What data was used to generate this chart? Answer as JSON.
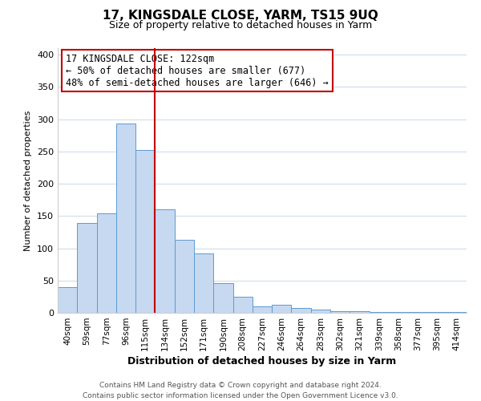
{
  "title": "17, KINGSDALE CLOSE, YARM, TS15 9UQ",
  "subtitle": "Size of property relative to detached houses in Yarm",
  "xlabel": "Distribution of detached houses by size in Yarm",
  "ylabel": "Number of detached properties",
  "bar_labels": [
    "40sqm",
    "59sqm",
    "77sqm",
    "96sqm",
    "115sqm",
    "134sqm",
    "152sqm",
    "171sqm",
    "190sqm",
    "208sqm",
    "227sqm",
    "246sqm",
    "264sqm",
    "283sqm",
    "302sqm",
    "321sqm",
    "339sqm",
    "358sqm",
    "377sqm",
    "395sqm",
    "414sqm"
  ],
  "bar_values": [
    40,
    139,
    154,
    293,
    252,
    160,
    113,
    92,
    46,
    25,
    10,
    13,
    8,
    5,
    3,
    2,
    1,
    1,
    1,
    1,
    1
  ],
  "bar_color": "#c6d9f0",
  "bar_edge_color": "#5b9bd5",
  "vline_x": 4.5,
  "vline_color": "#c00000",
  "annotation_title": "17 KINGSDALE CLOSE: 122sqm",
  "annotation_line1": "← 50% of detached houses are smaller (677)",
  "annotation_line2": "48% of semi-detached houses are larger (646) →",
  "annotation_box_color": "#ffffff",
  "annotation_box_edge": "#c00000",
  "ylim": [
    0,
    410
  ],
  "yticks": [
    0,
    50,
    100,
    150,
    200,
    250,
    300,
    350,
    400
  ],
  "footer_line1": "Contains HM Land Registry data © Crown copyright and database right 2024.",
  "footer_line2": "Contains public sector information licensed under the Open Government Licence v3.0.",
  "background_color": "#ffffff",
  "grid_color": "#d0dce8"
}
